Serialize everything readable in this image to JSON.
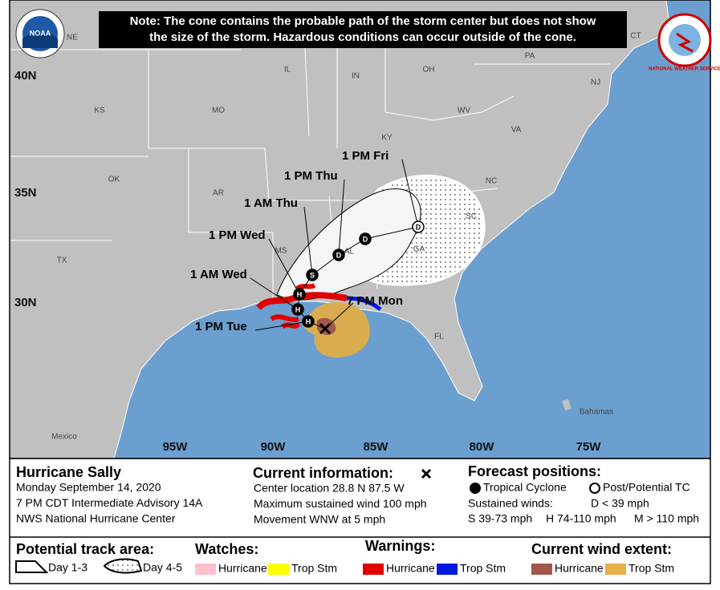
{
  "note": [
    "Note: The cone contains the probable path of the storm center but does not show",
    "the size of the storm. Hazardous conditions can occur outside of the cone."
  ],
  "logos": {
    "noaa": "NOAA",
    "nws": "NATIONAL WEATHER SERVICE"
  },
  "latitude_labels": [
    "40N",
    "35N",
    "30N"
  ],
  "longitude_labels": [
    "95W",
    "90W",
    "85W",
    "80W",
    "75W"
  ],
  "place_labels": [
    "NE",
    "IL",
    "IN",
    "OH",
    "PA",
    "CT",
    "NJ",
    "KS",
    "MO",
    "WV",
    "VA",
    "KY",
    "NC",
    "OK",
    "AR",
    "SC",
    "TX",
    "MS",
    "AL",
    "GA",
    "FL",
    "Mexico",
    "Bahamas"
  ],
  "current_position": {
    "time": "7 PM Mon"
  },
  "forecast_points": [
    {
      "time": "1 PM Tue",
      "symbol": "H"
    },
    {
      "time": "1 AM Wed",
      "symbol": "H"
    },
    {
      "time": "1 PM Wed",
      "symbol": "H"
    },
    {
      "time": "1 AM Thu",
      "symbol": "S"
    },
    {
      "time": "1 PM Thu",
      "symbol": "D"
    },
    {
      "symbol": "D"
    },
    {
      "time": "1 PM Fri",
      "symbol": "D",
      "open": true
    }
  ],
  "storm": {
    "name": "Hurricane Sally",
    "date": "Monday September 14, 2020",
    "advisory": "7 PM CDT Intermediate Advisory 14A",
    "office": "NWS National Hurricane Center"
  },
  "current_information": {
    "title": "Current information:",
    "lines": [
      "Center location 28.8 N 87.5 W",
      "Maximum sustained wind 100 mph",
      "Movement WNW at 5 mph"
    ]
  },
  "forecast_positions": {
    "title": "Forecast positions:",
    "tropical": "Tropical Cyclone",
    "post": "Post/Potential TC",
    "sustained": "Sustained winds:",
    "d": "D < 39 mph",
    "s": "S 39-73 mph",
    "h": "H 74-110 mph",
    "m": "M > 110 mph"
  },
  "legend": {
    "track_title": "Potential track area:",
    "day13": "Day 1-3",
    "day45": "Day 4-5",
    "watches_title": "Watches:",
    "watch_hurricane": "Hurricane",
    "watch_tropstm": "Trop Stm",
    "warnings_title": "Warnings:",
    "warn_hurricane": "Hurricane",
    "warn_tropstm": "Trop Stm",
    "wind_title": "Current wind extent:",
    "wind_hurricane": "Hurricane",
    "wind_tropstm": "Trop Stm"
  }
}
